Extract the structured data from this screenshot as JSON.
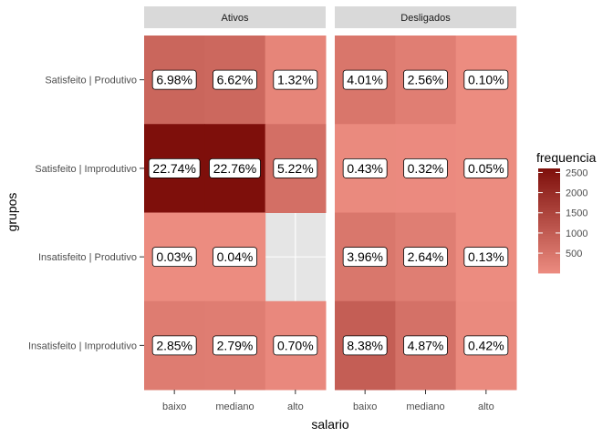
{
  "chart_data": {
    "type": "heatmap",
    "xlabel": "salario",
    "ylabel": "grupos",
    "x_categories": [
      "baixo",
      "mediano",
      "alto"
    ],
    "y_categories": [
      "Satisfeito | Produtivo",
      "Satisfeito | Improdutivo",
      "Insatisfeito | Produtivo",
      "Insatisfeito | Improdutivo"
    ],
    "legend": {
      "title": "frequencia",
      "ticks": [
        "2500",
        "2000",
        "1500",
        "1000",
        "500"
      ],
      "tick_values": [
        2500,
        2000,
        1500,
        1000,
        500
      ],
      "range": [
        5,
        2600
      ],
      "low_color": "#ec8c80",
      "high_color": "#7e0f0b",
      "position": "right"
    },
    "background_color": "#e5e5e5",
    "strip_color": "#d9d9d9",
    "panels": [
      {
        "name": "Ativos",
        "cells": [
          {
            "x": "baixo",
            "y": "Satisfeito | Produtivo",
            "label": "6.98%",
            "freq": 800
          },
          {
            "x": "mediano",
            "y": "Satisfeito | Produtivo",
            "label": "6.62%",
            "freq": 760
          },
          {
            "x": "alto",
            "y": "Satisfeito | Produtivo",
            "label": "1.32%",
            "freq": 150
          },
          {
            "x": "baixo",
            "y": "Satisfeito | Improdutivo",
            "label": "22.74%",
            "freq": 2600
          },
          {
            "x": "mediano",
            "y": "Satisfeito | Improdutivo",
            "label": "22.76%",
            "freq": 2600
          },
          {
            "x": "alto",
            "y": "Satisfeito | Improdutivo",
            "label": "5.22%",
            "freq": 600
          },
          {
            "x": "baixo",
            "y": "Insatisfeito | Produtivo",
            "label": "0.03%",
            "freq": 5
          },
          {
            "x": "mediano",
            "y": "Insatisfeito | Produtivo",
            "label": "0.04%",
            "freq": 5
          },
          {
            "x": "baixo",
            "y": "Insatisfeito | Improdutivo",
            "label": "2.85%",
            "freq": 330
          },
          {
            "x": "mediano",
            "y": "Insatisfeito | Improdutivo",
            "label": "2.79%",
            "freq": 320
          },
          {
            "x": "alto",
            "y": "Insatisfeito | Improdutivo",
            "label": "0.70%",
            "freq": 80
          }
        ]
      },
      {
        "name": "Desligados",
        "cells": [
          {
            "x": "baixo",
            "y": "Satisfeito | Produtivo",
            "label": "4.01%",
            "freq": 460
          },
          {
            "x": "mediano",
            "y": "Satisfeito | Produtivo",
            "label": "2.56%",
            "freq": 290
          },
          {
            "x": "alto",
            "y": "Satisfeito | Produtivo",
            "label": "0.10%",
            "freq": 12
          },
          {
            "x": "baixo",
            "y": "Satisfeito | Improdutivo",
            "label": "0.43%",
            "freq": 50
          },
          {
            "x": "mediano",
            "y": "Satisfeito | Improdutivo",
            "label": "0.32%",
            "freq": 37
          },
          {
            "x": "alto",
            "y": "Satisfeito | Improdutivo",
            "label": "0.05%",
            "freq": 6
          },
          {
            "x": "baixo",
            "y": "Insatisfeito | Produtivo",
            "label": "3.96%",
            "freq": 450
          },
          {
            "x": "mediano",
            "y": "Insatisfeito | Produtivo",
            "label": "2.64%",
            "freq": 300
          },
          {
            "x": "alto",
            "y": "Insatisfeito | Produtivo",
            "label": "0.13%",
            "freq": 15
          },
          {
            "x": "baixo",
            "y": "Insatisfeito | Improdutivo",
            "label": "8.38%",
            "freq": 960
          },
          {
            "x": "mediano",
            "y": "Insatisfeito | Improdutivo",
            "label": "4.87%",
            "freq": 560
          },
          {
            "x": "alto",
            "y": "Insatisfeito | Improdutivo",
            "label": "0.42%",
            "freq": 48
          }
        ]
      }
    ]
  }
}
